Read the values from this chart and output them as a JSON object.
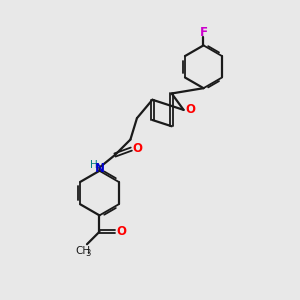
{
  "bg_color": "#e8e8e8",
  "bond_color": "#1a1a1a",
  "o_color": "#ff0000",
  "n_color": "#0000cc",
  "f_color": "#cc00cc",
  "h_color": "#008080",
  "figsize": [
    3.0,
    3.0
  ],
  "dpi": 100,
  "xlim": [
    0,
    10
  ],
  "ylim": [
    0,
    10
  ]
}
